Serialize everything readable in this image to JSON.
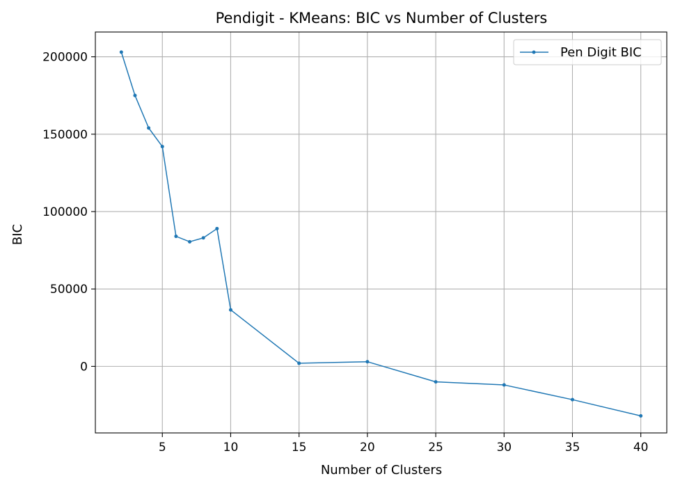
{
  "chart_data": {
    "type": "line",
    "title": "Pendigit - KMeans: BIC vs Number of Clusters",
    "xlabel": "Number of Clusters",
    "ylabel": "BIC",
    "xlim": [
      0.1,
      41.9
    ],
    "ylim": [
      -43000,
      216000
    ],
    "xticks": [
      5,
      10,
      15,
      20,
      25,
      30,
      35,
      40
    ],
    "yticks": [
      0,
      50000,
      100000,
      150000,
      200000
    ],
    "grid": true,
    "legend_position": "top-right",
    "series": [
      {
        "name": "Pen Digit BIC",
        "color": "#1f77b4",
        "marker": "circle",
        "x": [
          2,
          3,
          4,
          5,
          6,
          7,
          8,
          9,
          10,
          15,
          20,
          25,
          30,
          35,
          40
        ],
        "y": [
          203000,
          175000,
          154000,
          142000,
          84000,
          80500,
          83000,
          89000,
          36500,
          2000,
          3000,
          -10000,
          -12000,
          -21500,
          -32000
        ]
      }
    ]
  }
}
